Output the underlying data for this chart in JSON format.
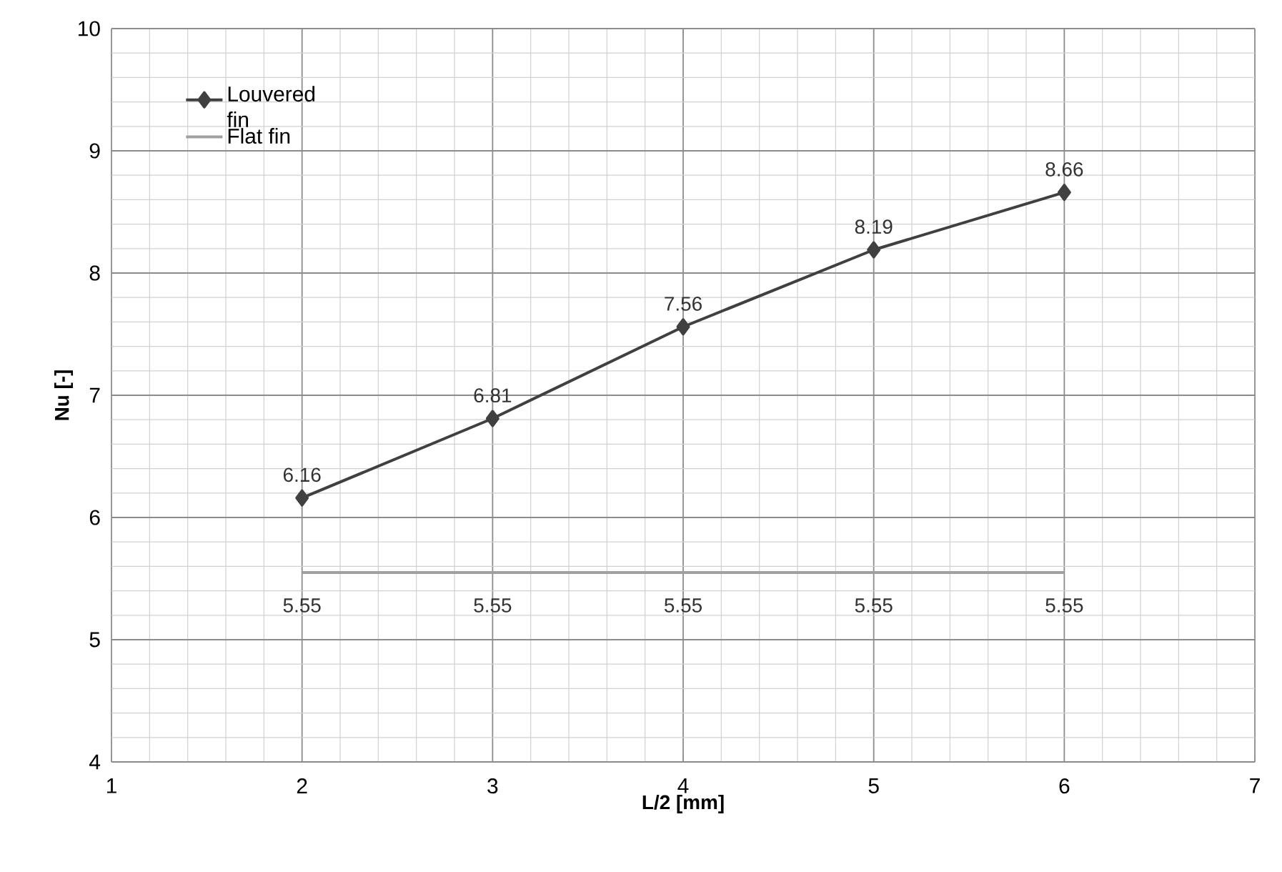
{
  "chart_data": {
    "type": "line",
    "xlabel": "L/2 [mm]",
    "ylabel": "Nu [-]",
    "x": [
      2,
      3,
      4,
      5,
      6
    ],
    "series": [
      {
        "name": "Louvered fin",
        "color": "#404040",
        "marker": "diamond",
        "values": [
          6.16,
          6.81,
          7.56,
          8.19,
          8.66
        ]
      },
      {
        "name": "Flat fin",
        "color": "#a0a0a0",
        "marker": "none",
        "values": [
          5.55,
          5.55,
          5.55,
          5.55,
          5.55
        ]
      }
    ],
    "xlim": [
      1,
      7
    ],
    "ylim": [
      4,
      10
    ],
    "xticks": [
      1,
      2,
      3,
      4,
      5,
      6,
      7
    ],
    "yticks": [
      4,
      5,
      6,
      7,
      8,
      9,
      10
    ],
    "grid": true,
    "legend": "top left",
    "data_labels": true
  }
}
